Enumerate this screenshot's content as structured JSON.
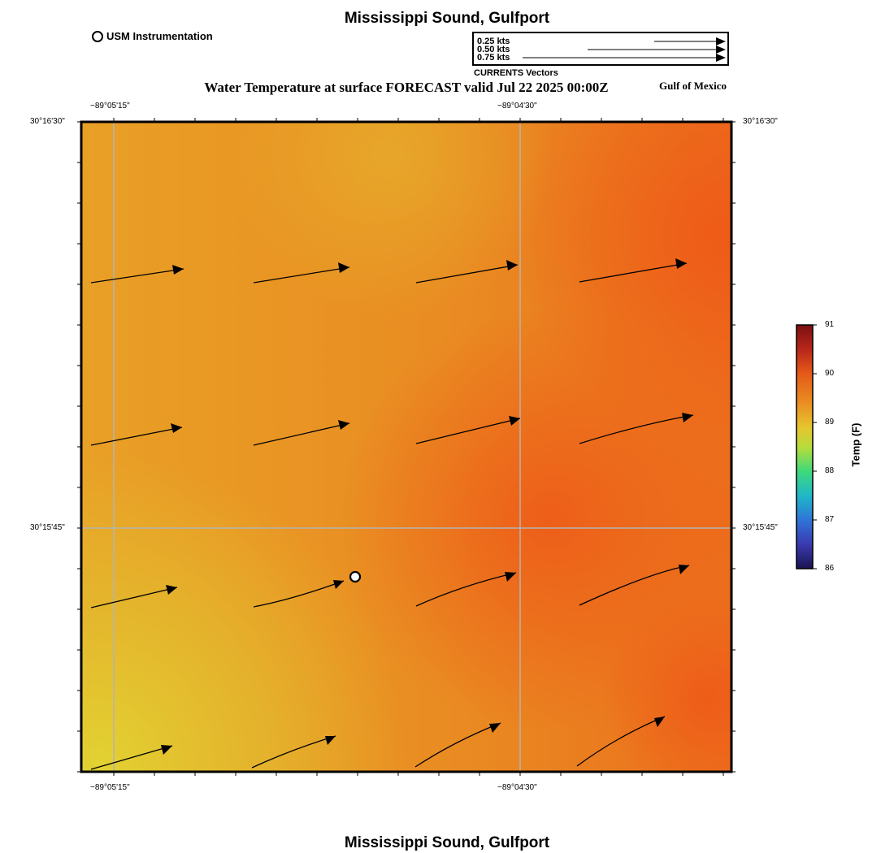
{
  "header": {
    "title": "Mississippi Sound, Gulfport",
    "subtitle": "Water Temperature at surface FORECAST valid Jul 22 2025 00:00Z",
    "region": "Gulf of Mexico",
    "footer_title": "Mississippi Sound, Gulfport"
  },
  "legend": {
    "instrument_label": "USM Instrumentation",
    "vectors_title": "CURRENTS Vectors",
    "vector_scales": [
      "0.25 kts",
      "0.50 kts",
      "0.75 kts"
    ]
  },
  "axes": {
    "top_lon_labels": [
      "−89°05'15\"",
      "−89°04'30\""
    ],
    "bottom_lon_labels": [
      "−89°05'15\"",
      "−89°04'30\""
    ],
    "left_lat_labels": [
      "30°16'30\"",
      "30°15'45\""
    ],
    "right_lat_labels": [
      "30°16'30\"",
      "30°15'45\""
    ]
  },
  "colorbar": {
    "label": "Temp (F)",
    "ticks": [
      "91",
      "90",
      "89",
      "88",
      "87",
      "86"
    ],
    "min": 86,
    "max": 91
  },
  "colors": {
    "warm_orange": "#e8901f",
    "hot_orange": "#ef6a1a",
    "yellow": "#e0c832",
    "grid": "#b4b4b4"
  }
}
